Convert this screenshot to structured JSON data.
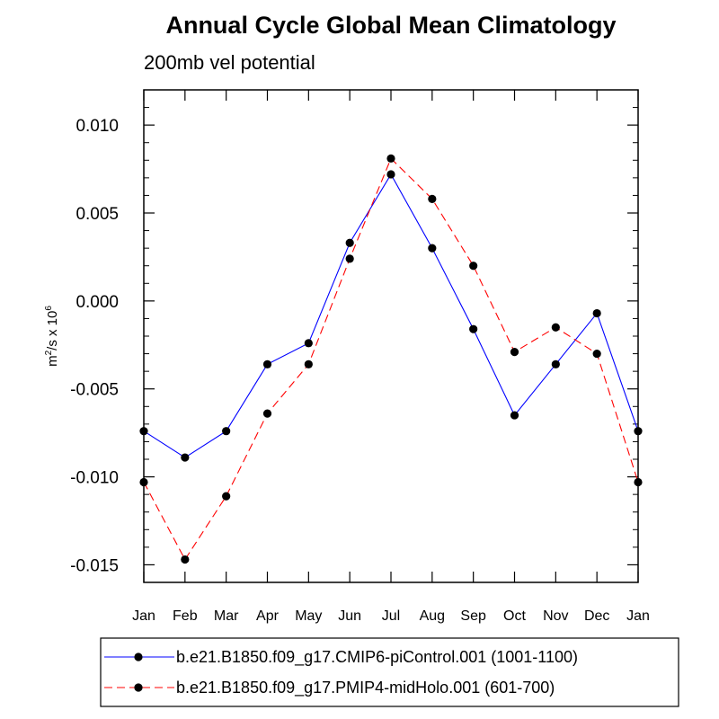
{
  "chart_data": {
    "type": "line",
    "title": "Annual Cycle Global Mean Climatology",
    "subtitle": "200mb vel potential",
    "ylabel": {
      "prefix": "m",
      "sup1": "2",
      "middle": "/s x 10",
      "sup2": "6"
    },
    "xlabel": "",
    "categories": [
      "Jan",
      "Feb",
      "Mar",
      "Apr",
      "May",
      "Jun",
      "Jul",
      "Aug",
      "Sep",
      "Oct",
      "Nov",
      "Dec",
      "Jan"
    ],
    "ylim": [
      -0.016,
      0.012
    ],
    "yticks": [
      -0.015,
      -0.01,
      -0.005,
      0.0,
      0.005,
      0.01
    ],
    "ytick_labels": [
      "-0.015",
      "-0.010",
      "-0.005",
      "0.000",
      "0.005",
      "0.010"
    ],
    "grid": false,
    "legend_position": "bottom",
    "series": [
      {
        "name": "b.e21.B1850.f09_g17.CMIP6-piControl.001 (1001-1100)",
        "color": "#0000ff",
        "style": "solid",
        "values": [
          -0.0074,
          -0.0089,
          -0.0074,
          -0.0036,
          -0.0024,
          0.0033,
          0.0072,
          0.003,
          -0.0016,
          -0.0065,
          -0.0036,
          -0.0007,
          -0.0074
        ]
      },
      {
        "name": "b.e21.B1850.f09_g17.PMIP4-midHolo.001 (601-700)",
        "color": "#ff0000",
        "style": "dashed",
        "values": [
          -0.0103,
          -0.0147,
          -0.0111,
          -0.0064,
          -0.0036,
          0.0024,
          0.0081,
          0.0058,
          0.002,
          -0.0029,
          -0.0015,
          -0.003,
          -0.0103
        ]
      }
    ]
  }
}
